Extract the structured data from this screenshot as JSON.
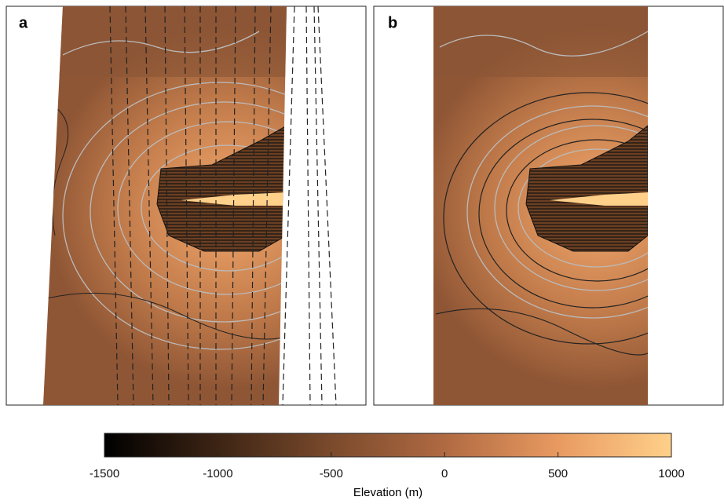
{
  "panels": [
    {
      "label": "a"
    },
    {
      "label": "b"
    }
  ],
  "colorbar": {
    "label": "Elevation (m)",
    "lim": [
      -1500,
      1000
    ],
    "ticks": [
      -1500,
      -1000,
      -500,
      0,
      500,
      1000
    ]
  }
}
